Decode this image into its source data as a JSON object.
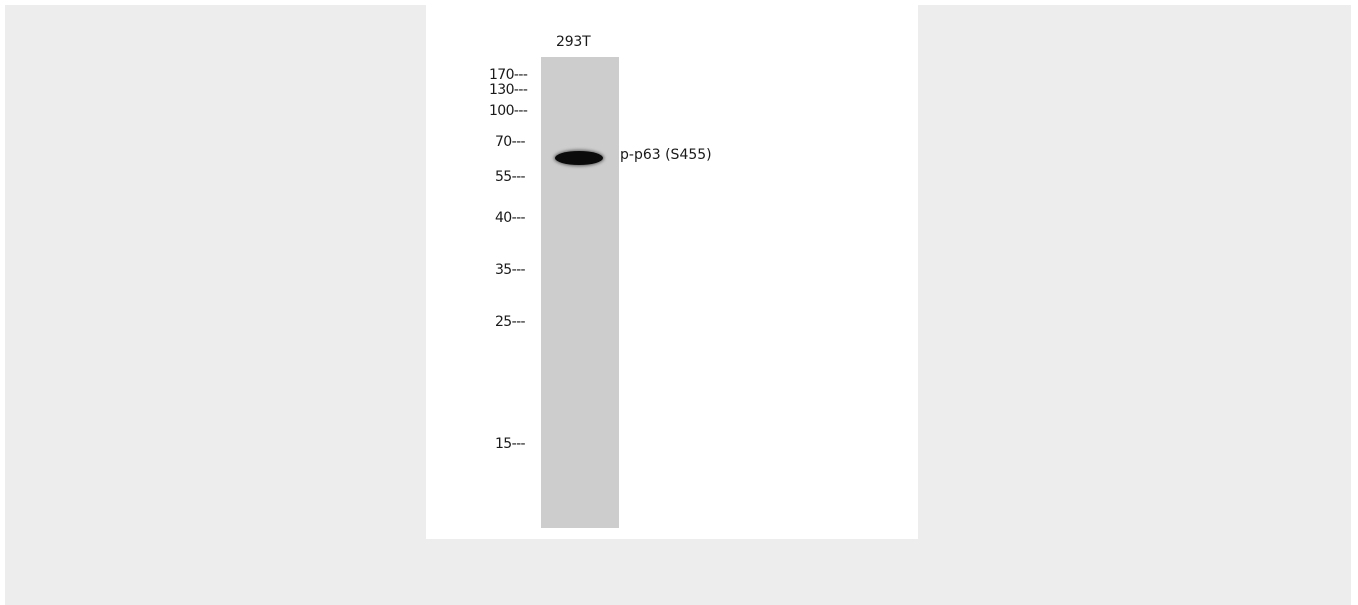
{
  "blot": {
    "lane_label": "293T",
    "band_label": "p-p63 (S455)",
    "markers": [
      "170---",
      "130---",
      "100---",
      "70---",
      "55---",
      "40---",
      "35---",
      "25---",
      "15---"
    ]
  },
  "colors": {
    "viewer_background": "#ededed",
    "image_background": "#ffffff",
    "lane": "#cdcdcd",
    "band": "#0b0b0b"
  }
}
